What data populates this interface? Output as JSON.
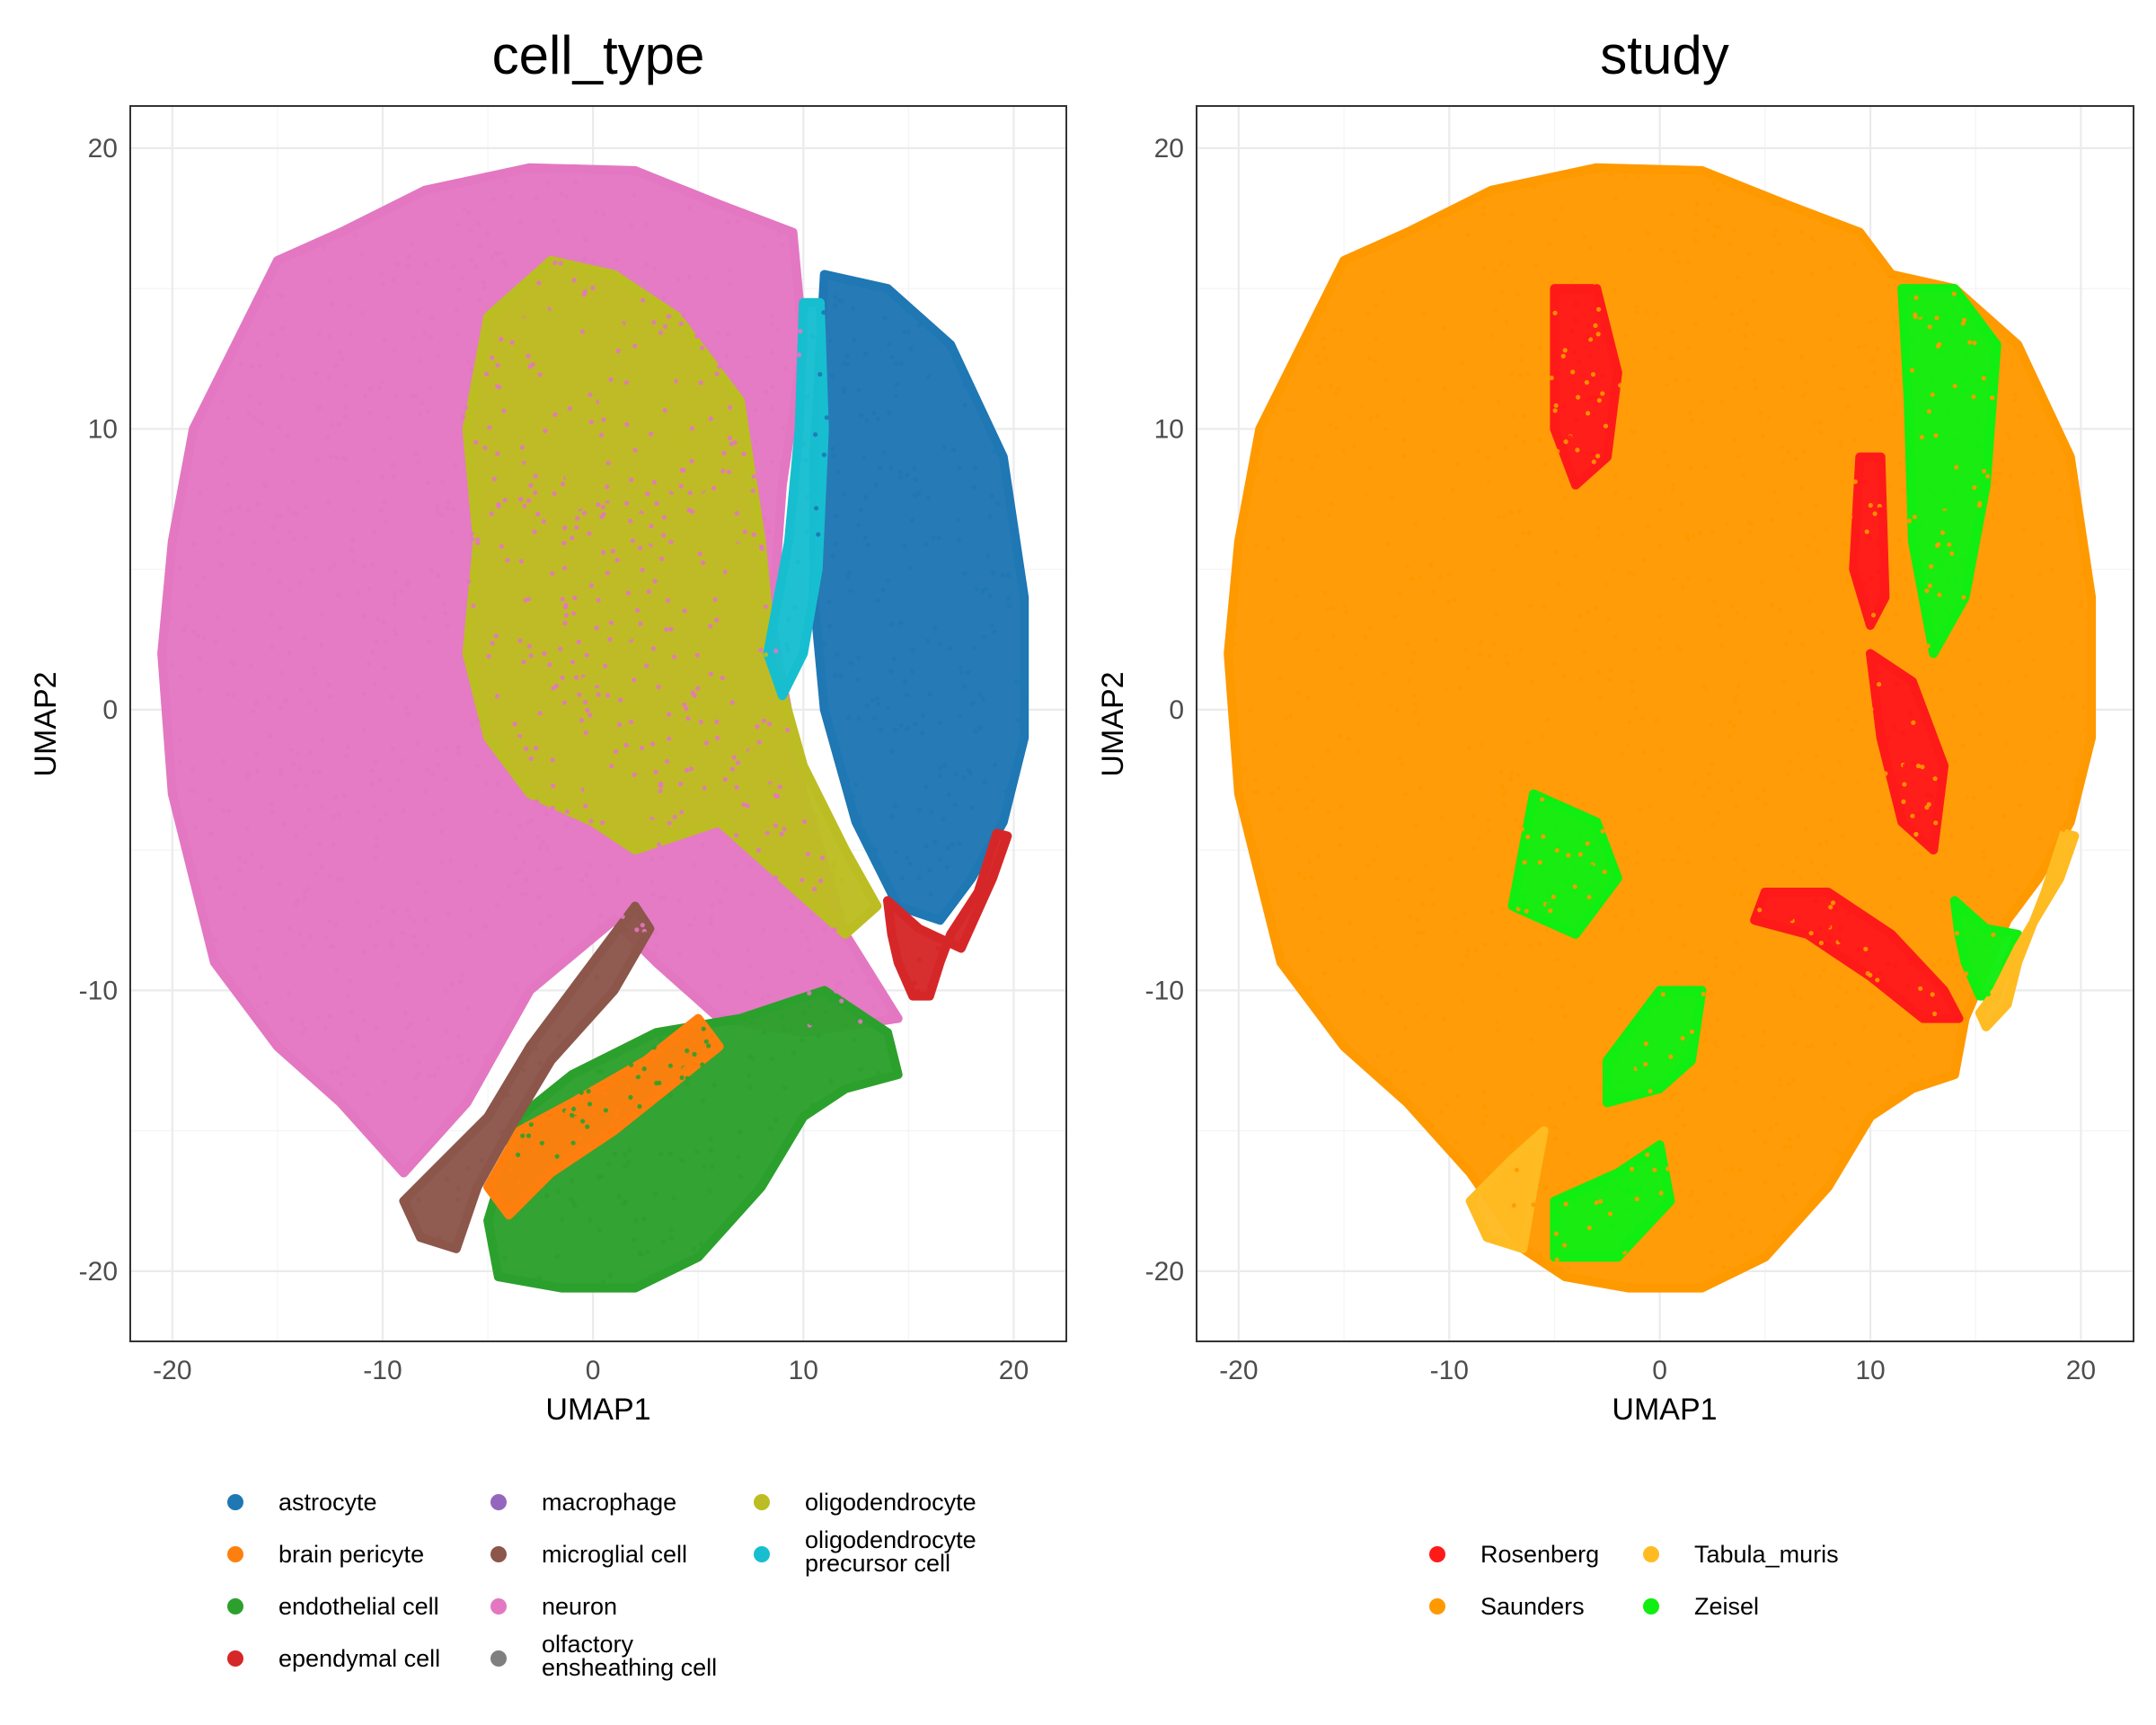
{
  "chart_data": [
    {
      "type": "scatter",
      "title": "cell_type",
      "xlabel": "UMAP1",
      "ylabel": "UMAP2",
      "xlim": [
        -22,
        22.5
      ],
      "ylim": [
        -22.5,
        21.5
      ],
      "xticks": [
        -20,
        -10,
        0,
        10,
        20
      ],
      "yticks": [
        -20,
        -10,
        0,
        10,
        20
      ],
      "grid": true,
      "legend_position": "bottom",
      "legend_columns": 3,
      "series": [
        {
          "name": "astrocyte",
          "color": "#1f77b4"
        },
        {
          "name": "brain pericyte",
          "color": "#ff7f0e"
        },
        {
          "name": "endothelial cell",
          "color": "#2ca02c"
        },
        {
          "name": "ependymal cell",
          "color": "#d62728"
        },
        {
          "name": "macrophage",
          "color": "#9467bd"
        },
        {
          "name": "microglial cell",
          "color": "#8c564b"
        },
        {
          "name": "neuron",
          "color": "#e377c2"
        },
        {
          "name": "olfactory ensheathing cell",
          "color": "#7f7f7f"
        },
        {
          "name": "oligodendrocyte",
          "color": "#bcbd22"
        },
        {
          "name": "oligodendrocyte precursor cell",
          "color": "#17becf"
        }
      ],
      "regions": [
        {
          "series": "neuron",
          "polygon": [
            [
              -20,
              6
            ],
            [
              -19,
              10
            ],
            [
              -17,
              13
            ],
            [
              -15,
              16
            ],
            [
              -12,
              17
            ],
            [
              -8,
              18.5
            ],
            [
              -3,
              19.3
            ],
            [
              2,
              19.2
            ],
            [
              6,
              18
            ],
            [
              9.5,
              17
            ],
            [
              10,
              13
            ],
            [
              9,
              8
            ],
            [
              8.5,
              3
            ],
            [
              10,
              -3
            ],
            [
              12,
              -8
            ],
            [
              14.5,
              -11
            ],
            [
              10,
              -11.5
            ],
            [
              6,
              -11
            ],
            [
              3,
              -9
            ],
            [
              1,
              -7.5
            ],
            [
              -3,
              -10
            ],
            [
              -6,
              -14
            ],
            [
              -9,
              -16.5
            ],
            [
              -12,
              -14
            ],
            [
              -15,
              -12
            ],
            [
              -18,
              -9
            ],
            [
              -20,
              -3
            ],
            [
              -20.5,
              2
            ]
          ]
        },
        {
          "series": "oligodendrocyte",
          "polygon": [
            [
              -5,
              14
            ],
            [
              -2,
              16
            ],
            [
              1,
              15.5
            ],
            [
              4,
              14
            ],
            [
              7,
              11
            ],
            [
              8,
              6
            ],
            [
              8.5,
              2
            ],
            [
              10,
              -2
            ],
            [
              12,
              -5
            ],
            [
              13.5,
              -7
            ],
            [
              12,
              -8
            ],
            [
              9,
              -6
            ],
            [
              6,
              -4
            ],
            [
              4,
              -4.5
            ],
            [
              2,
              -5
            ],
            [
              0,
              -4
            ],
            [
              -3,
              -3
            ],
            [
              -5,
              -1
            ],
            [
              -6,
              2
            ],
            [
              -5.5,
              6
            ],
            [
              -6,
              10
            ]
          ]
        },
        {
          "series": "astrocyte",
          "polygon": [
            [
              11,
              15.5
            ],
            [
              14,
              15
            ],
            [
              17,
              13
            ],
            [
              19.5,
              9
            ],
            [
              20.5,
              4
            ],
            [
              20.5,
              -1
            ],
            [
              19.5,
              -4
            ],
            [
              18,
              -6
            ],
            [
              16.5,
              -7.5
            ],
            [
              14.5,
              -7
            ],
            [
              12.5,
              -4
            ],
            [
              11,
              0
            ],
            [
              10.5,
              4
            ],
            [
              10.5,
              9
            ]
          ]
        },
        {
          "series": "oligodendrocyte precursor cell",
          "polygon": [
            [
              10,
              14.5
            ],
            [
              10.8,
              14.5
            ],
            [
              11,
              10
            ],
            [
              10.7,
              5
            ],
            [
              10,
              2
            ],
            [
              9,
              0.5
            ],
            [
              8.3,
              2
            ],
            [
              9.3,
              6
            ],
            [
              9.8,
              10
            ]
          ]
        },
        {
          "series": "endothelial cell",
          "polygon": [
            [
              -5,
              -18.2
            ],
            [
              -3.5,
              -14.5
            ],
            [
              -1,
              -13
            ],
            [
              3,
              -11.5
            ],
            [
              7,
              -11
            ],
            [
              11,
              -10
            ],
            [
              14,
              -11.5
            ],
            [
              14.5,
              -13
            ],
            [
              12,
              -13.5
            ],
            [
              10,
              -14.5
            ],
            [
              8,
              -17
            ],
            [
              5,
              -19.5
            ],
            [
              2,
              -20.6
            ],
            [
              -1.5,
              -20.6
            ],
            [
              -4.5,
              -20.2
            ]
          ]
        },
        {
          "series": "brain pericyte",
          "polygon": [
            [
              -5,
              -17
            ],
            [
              -3.5,
              -15
            ],
            [
              -1,
              -14
            ],
            [
              2.5,
              -12.5
            ],
            [
              5,
              -11
            ],
            [
              6,
              -12
            ],
            [
              3.5,
              -13.5
            ],
            [
              1,
              -15
            ],
            [
              -2,
              -16.5
            ],
            [
              -4,
              -18
            ]
          ]
        },
        {
          "series": "microglial cell",
          "polygon": [
            [
              -9,
              -17.5
            ],
            [
              -7,
              -16
            ],
            [
              -5,
              -14.5
            ],
            [
              -3,
              -12
            ],
            [
              0,
              -9
            ],
            [
              2,
              -7
            ],
            [
              2.7,
              -7.8
            ],
            [
              1,
              -10
            ],
            [
              -2,
              -12.5
            ],
            [
              -4,
              -15
            ],
            [
              -5.5,
              -17
            ],
            [
              -6.5,
              -19.2
            ],
            [
              -8.2,
              -18.8
            ]
          ]
        },
        {
          "series": "ependymal cell",
          "polygon": [
            [
              14,
              -6.8
            ],
            [
              15.5,
              -7.8
            ],
            [
              17.5,
              -8.5
            ],
            [
              19,
              -6
            ],
            [
              19.7,
              -4.5
            ],
            [
              19.2,
              -4.4
            ],
            [
              18.3,
              -6.5
            ],
            [
              17,
              -8
            ],
            [
              16.5,
              -9
            ],
            [
              16,
              -10.2
            ],
            [
              15.2,
              -10.2
            ],
            [
              14.5,
              -9
            ],
            [
              14.2,
              -8
            ]
          ]
        }
      ]
    },
    {
      "type": "scatter",
      "title": "study",
      "xlabel": "UMAP1",
      "ylabel": "UMAP2",
      "xlim": [
        -22,
        22.5
      ],
      "ylim": [
        -22.5,
        21.5
      ],
      "xticks": [
        -20,
        -10,
        0,
        10,
        20
      ],
      "yticks": [
        -20,
        -10,
        0,
        10,
        20
      ],
      "grid": true,
      "legend_position": "bottom",
      "legend_columns": 2,
      "series": [
        {
          "name": "Rosenberg",
          "color": "#ff1a1a"
        },
        {
          "name": "Saunders",
          "color": "#ff9900"
        },
        {
          "name": "Tabula_muris",
          "color": "#ffbb22"
        },
        {
          "name": "Zeisel",
          "color": "#11ee11"
        }
      ],
      "regions": [
        {
          "series": "Saunders",
          "polygon": [
            [
              -20,
              6
            ],
            [
              -19,
              10
            ],
            [
              -17,
              13
            ],
            [
              -15,
              16
            ],
            [
              -12,
              17
            ],
            [
              -8,
              18.5
            ],
            [
              -3,
              19.3
            ],
            [
              2,
              19.2
            ],
            [
              6,
              18
            ],
            [
              9.5,
              17
            ],
            [
              11,
              15.5
            ],
            [
              14,
              15
            ],
            [
              17,
              13
            ],
            [
              19.5,
              9
            ],
            [
              20.5,
              4
            ],
            [
              20.5,
              -1
            ],
            [
              19.5,
              -4
            ],
            [
              18,
              -6
            ],
            [
              16.5,
              -7.5
            ],
            [
              14.5,
              -11
            ],
            [
              14,
              -13
            ],
            [
              12,
              -13.5
            ],
            [
              10,
              -14.5
            ],
            [
              8,
              -17
            ],
            [
              5,
              -19.5
            ],
            [
              2,
              -20.6
            ],
            [
              -1.5,
              -20.6
            ],
            [
              -4.5,
              -20.2
            ],
            [
              -6.5,
              -19.2
            ],
            [
              -9,
              -16.5
            ],
            [
              -12,
              -14
            ],
            [
              -15,
              -12
            ],
            [
              -18,
              -9
            ],
            [
              -20,
              -3
            ],
            [
              -20.5,
              2
            ]
          ]
        },
        {
          "series": "Rosenberg",
          "polygon": [
            [
              -5,
              15
            ],
            [
              -3,
              15
            ],
            [
              -2,
              12
            ],
            [
              -2.5,
              9
            ],
            [
              -4,
              8
            ],
            [
              -5,
              10
            ]
          ]
        },
        {
          "series": "Rosenberg",
          "polygon": [
            [
              9.5,
              9
            ],
            [
              10.5,
              9
            ],
            [
              10.7,
              4
            ],
            [
              10,
              3
            ],
            [
              9.2,
              5
            ]
          ]
        },
        {
          "series": "Rosenberg",
          "polygon": [
            [
              5,
              -6.5
            ],
            [
              8,
              -6.5
            ],
            [
              11,
              -8
            ],
            [
              13.5,
              -10
            ],
            [
              14.2,
              -11
            ],
            [
              12.5,
              -11
            ],
            [
              10,
              -9.5
            ],
            [
              7,
              -8
            ],
            [
              4.5,
              -7.5
            ]
          ]
        },
        {
          "series": "Rosenberg",
          "polygon": [
            [
              10,
              2
            ],
            [
              12,
              1
            ],
            [
              13.5,
              -2
            ],
            [
              13,
              -5
            ],
            [
              11.5,
              -4
            ],
            [
              10.5,
              -1
            ]
          ]
        },
        {
          "series": "Zeisel",
          "polygon": [
            [
              11.5,
              15
            ],
            [
              14,
              15
            ],
            [
              16,
              13
            ],
            [
              15.5,
              8
            ],
            [
              14.5,
              4
            ],
            [
              13,
              2
            ],
            [
              12,
              6
            ],
            [
              11.8,
              11
            ]
          ]
        },
        {
          "series": "Zeisel",
          "polygon": [
            [
              -5,
              -17.5
            ],
            [
              -2,
              -16.5
            ],
            [
              0,
              -15.5
            ],
            [
              0.5,
              -17.5
            ],
            [
              -2,
              -19.5
            ],
            [
              -5,
              -19.5
            ]
          ]
        },
        {
          "series": "Zeisel",
          "polygon": [
            [
              0,
              -10
            ],
            [
              2,
              -10
            ],
            [
              1.5,
              -12.5
            ],
            [
              0,
              -13.5
            ],
            [
              -2.5,
              -14
            ],
            [
              -2.5,
              -12.5
            ]
          ]
        },
        {
          "series": "Zeisel",
          "polygon": [
            [
              14,
              -6.8
            ],
            [
              15.5,
              -7.8
            ],
            [
              17,
              -8
            ],
            [
              16.5,
              -9
            ],
            [
              16,
              -10.2
            ],
            [
              15.2,
              -10.2
            ],
            [
              14.5,
              -9
            ],
            [
              14.2,
              -8
            ]
          ]
        },
        {
          "series": "Zeisel",
          "polygon": [
            [
              -6,
              -3
            ],
            [
              -3,
              -4
            ],
            [
              -2,
              -6
            ],
            [
              -4,
              -8
            ],
            [
              -7,
              -7
            ]
          ]
        },
        {
          "series": "Tabula_muris",
          "polygon": [
            [
              17,
              -8.5
            ],
            [
              19,
              -6
            ],
            [
              19.7,
              -4.5
            ],
            [
              19.2,
              -4.4
            ],
            [
              18.3,
              -6.5
            ],
            [
              17,
              -9
            ],
            [
              16.5,
              -10.5
            ],
            [
              15.5,
              -11.3
            ],
            [
              15.2,
              -10.8
            ],
            [
              16,
              -10
            ]
          ]
        },
        {
          "series": "Tabula_muris",
          "polygon": [
            [
              -9,
              -17.5
            ],
            [
              -7,
              -16
            ],
            [
              -5.5,
              -15
            ],
            [
              -6,
              -17
            ],
            [
              -6.5,
              -19.2
            ],
            [
              -8.2,
              -18.8
            ]
          ]
        }
      ]
    }
  ]
}
